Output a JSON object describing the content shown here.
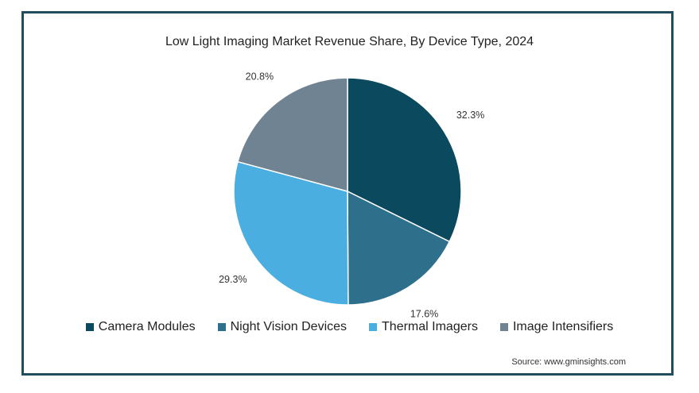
{
  "chart_data": {
    "type": "pie",
    "title": "Low Light Imaging Market Revenue Share, By Device Type, 2024",
    "slices": [
      {
        "label": "Camera Modules",
        "value": 32.3,
        "display": "32.3%",
        "color": "#0b4a5e"
      },
      {
        "label": "Night Vision Devices",
        "value": 17.6,
        "display": "17.6%",
        "color": "#2e6f8c"
      },
      {
        "label": "Thermal Imagers",
        "value": 29.3,
        "display": "29.3%",
        "color": "#4aaee0"
      },
      {
        "label": "Image Intensifiers",
        "value": 20.8,
        "display": "20.8%",
        "color": "#708393"
      }
    ],
    "start_angle_deg": 0,
    "direction": "clockwise",
    "legend_position": "bottom"
  },
  "source": "Source: www.gminsights.com"
}
